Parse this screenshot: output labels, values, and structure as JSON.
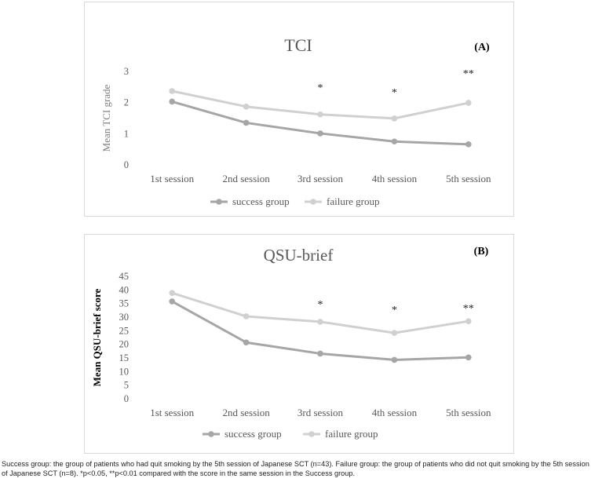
{
  "chart_data": [
    {
      "type": "line",
      "title": "TCI",
      "panel_label": "(A)",
      "ylabel": "Mean TCI grade",
      "xlabel": "",
      "ylim": [
        0,
        3
      ],
      "yticks": [
        "0",
        "1",
        "2",
        "3"
      ],
      "categories": [
        "1st session",
        "2nd session",
        "3rd session",
        "4th session",
        "5th session"
      ],
      "series": [
        {
          "name": "success group",
          "color": "#a6a6a6",
          "values": [
            2.03,
            1.35,
            1.01,
            0.75,
            0.66
          ]
        },
        {
          "name": "failure group",
          "color": "#d0d0d0",
          "values": [
            2.37,
            1.87,
            1.62,
            1.49,
            1.99
          ]
        }
      ],
      "significance": [
        "",
        "",
        "*",
        "*",
        "**"
      ],
      "legend_position": "bottom"
    },
    {
      "type": "line",
      "title": "QSU-brief",
      "panel_label": "(B)",
      "ylabel": "Mean QSU-brief score",
      "xlabel": "",
      "ylim": [
        0,
        45
      ],
      "yticks": [
        "0",
        "5",
        "10",
        "15",
        "20",
        "25",
        "30",
        "35",
        "40",
        "45"
      ],
      "categories": [
        "1st session",
        "2nd session",
        "3rd session",
        "4th session",
        "5th session"
      ],
      "series": [
        {
          "name": "success group",
          "color": "#a6a6a6",
          "values": [
            35.8,
            20.7,
            16.6,
            14.3,
            15.2
          ]
        },
        {
          "name": "failure group",
          "color": "#d0d0d0",
          "values": [
            38.9,
            30.3,
            28.3,
            24.2,
            28.5
          ]
        }
      ],
      "significance": [
        "",
        "",
        "*",
        "*",
        "**"
      ],
      "legend_position": "bottom"
    }
  ],
  "caption": "Success group: the group of patients who had quit smoking by the 5th session of Japanese SCT (n=43). Failure group: the group of patients who did not quit smoking by the 5th session of Japanese SCT (n=8). *p<0.05, **p<0.01 compared with the score in the same session in the Success group."
}
